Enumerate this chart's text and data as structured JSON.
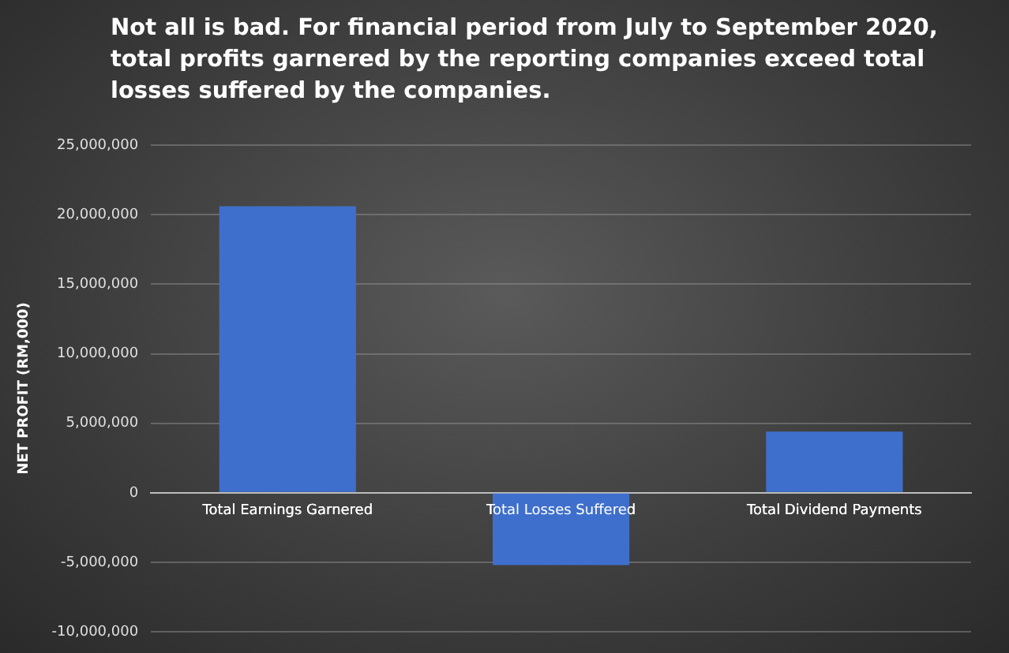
{
  "chart_data": {
    "type": "bar",
    "title": "Not all is bad. For financial period from July to September 2020, total profits garnered by the reporting companies exceed total losses suffered by the companies.",
    "ylabel": "NET PROFIT (RM,000)",
    "categories": [
      "Total Earnings Garnered",
      "Total Losses Suffered",
      "Total Dividend Payments"
    ],
    "values": [
      20600000,
      -5200000,
      4400000
    ],
    "color": "#3f6fcc",
    "ylim": [
      -10000000,
      25000000
    ],
    "yticks": [
      {
        "value": -10000000,
        "label": "-10,000,000"
      },
      {
        "value": -5000000,
        "label": "-5,000,000"
      },
      0,
      {
        "value": 5000000,
        "label": "5,000,000"
      },
      {
        "value": 10000000,
        "label": "10,000,000"
      },
      {
        "value": 15000000,
        "label": "15,000,000"
      },
      {
        "value": 20000000,
        "label": "20,000,000"
      },
      {
        "value": 25000000,
        "label": "25,000,000"
      }
    ],
    "grid": "y",
    "legend": false
  }
}
